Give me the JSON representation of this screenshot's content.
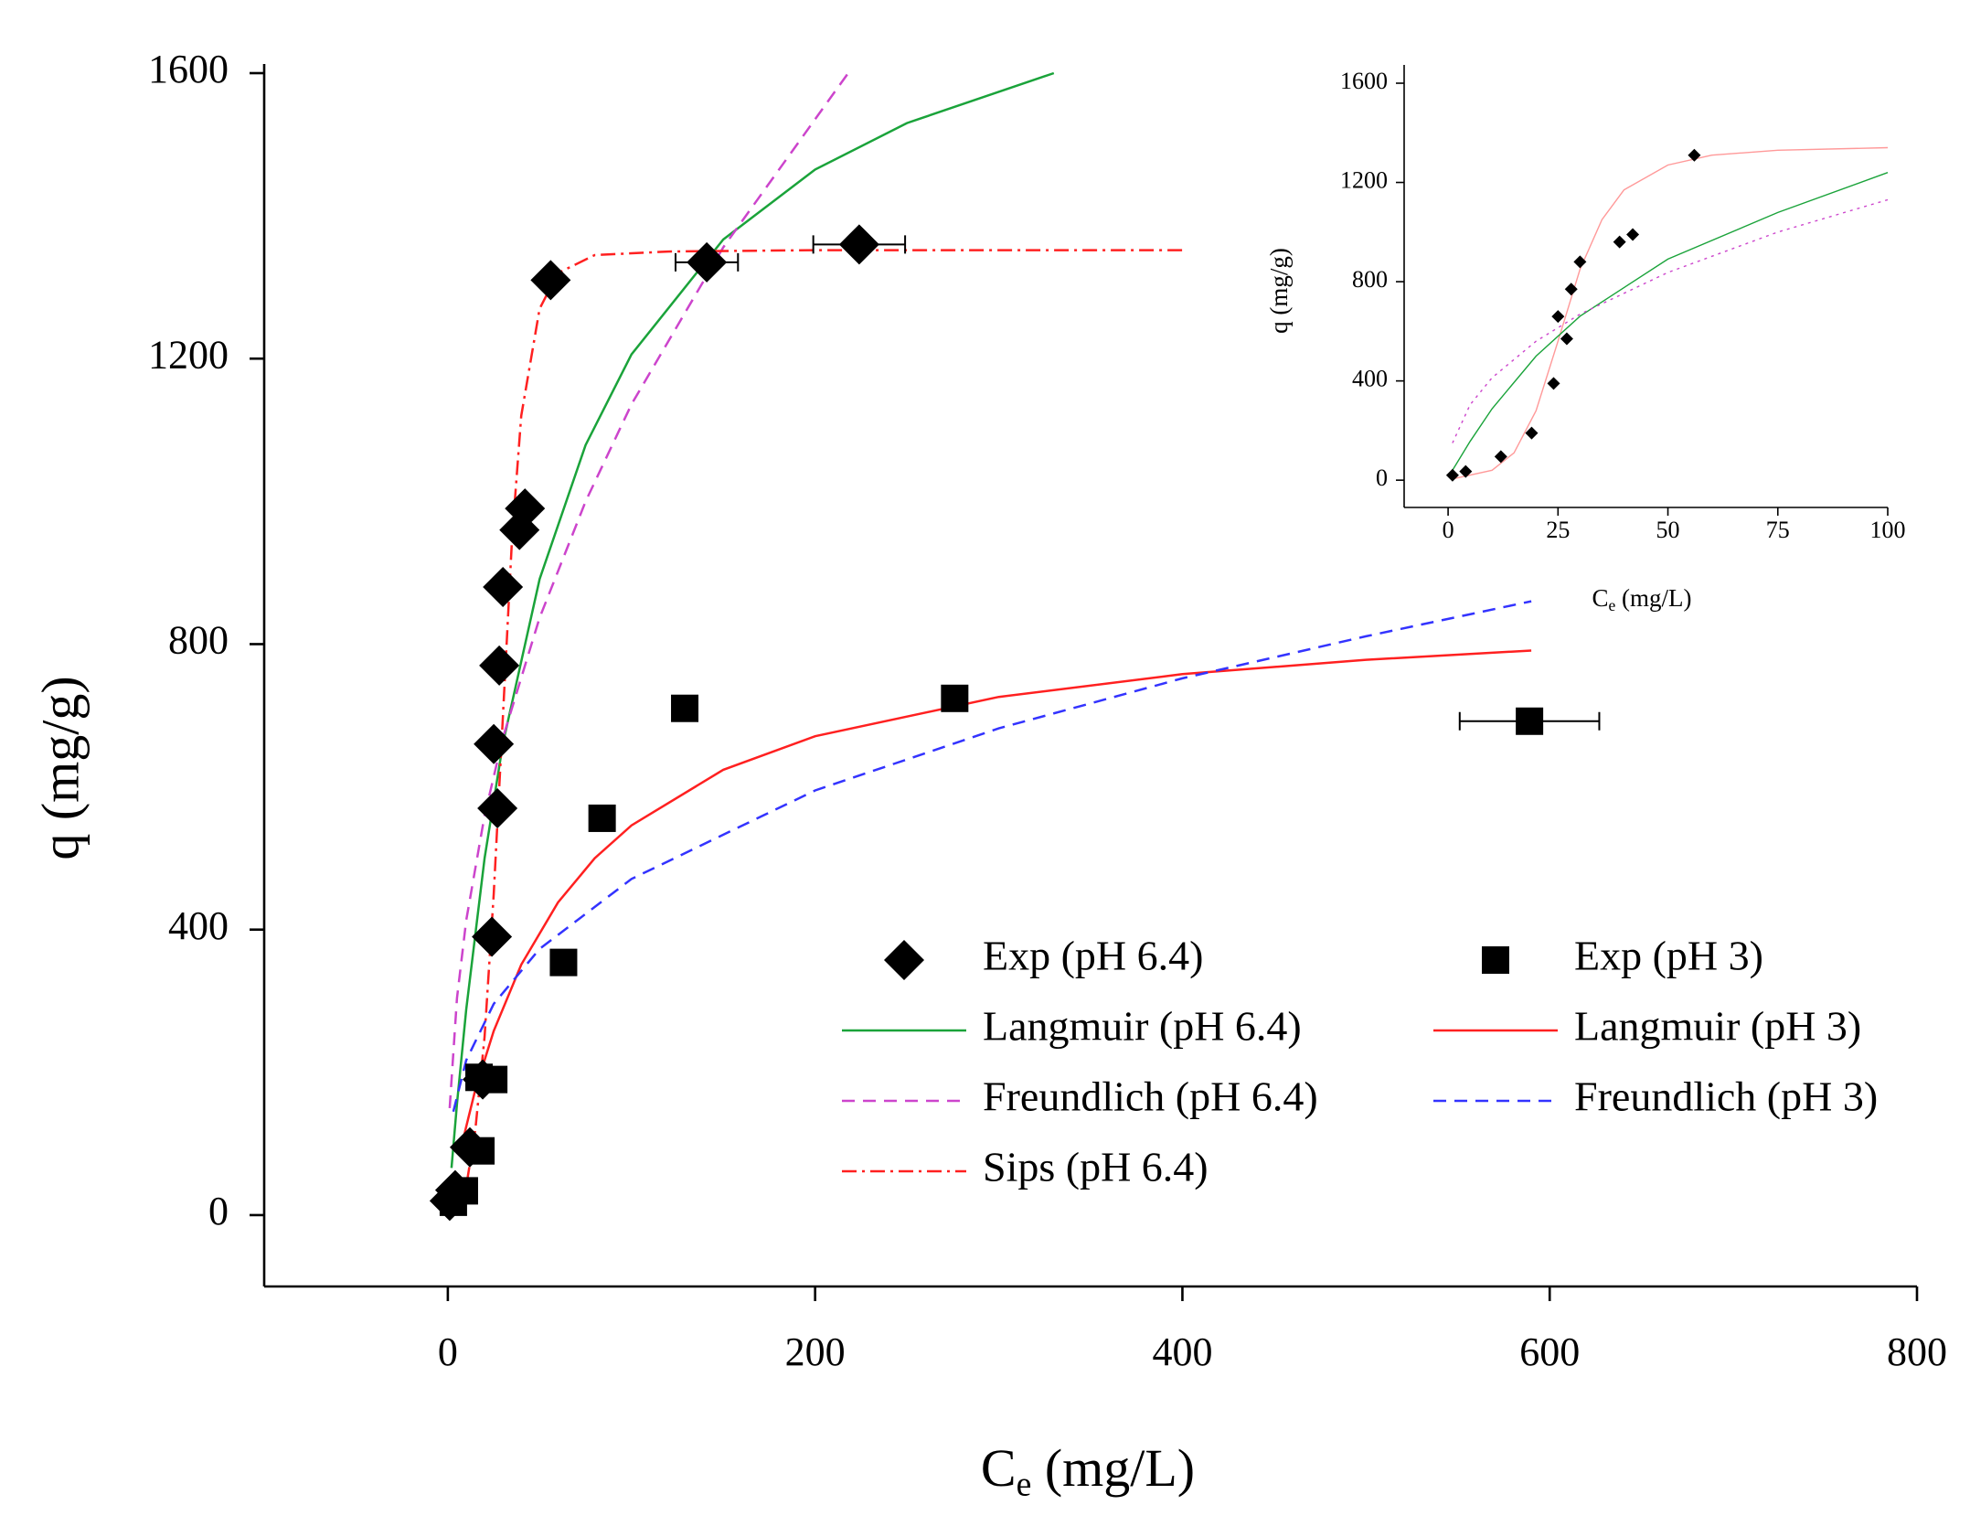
{
  "chart_data": [
    {
      "type": "scatter",
      "x_label": [
        "C",
        "e",
        " (mg/L)"
      ],
      "y_label": "q (mg/g)",
      "xlim": [
        -100,
        800
      ],
      "ylim": [
        -100,
        1600
      ],
      "xticks": [
        0,
        200,
        400,
        600,
        800
      ],
      "yticks": [
        0,
        400,
        800,
        1200,
        1600
      ],
      "legend": "lower right",
      "legend_columns": 2,
      "series": [
        {
          "name": "Exp (pH 6.4)",
          "color": "#000000",
          "mode": "markers",
          "marker": "diamond",
          "x": [
            1,
            4,
            12,
            19,
            24,
            25,
            27,
            28,
            30,
            39,
            42,
            56,
            141,
            224
          ],
          "values": [
            20,
            35,
            95,
            190,
            390,
            660,
            570,
            770,
            880,
            960,
            990,
            1310,
            1335,
            1360
          ],
          "xerr": [
            null,
            null,
            null,
            null,
            null,
            null,
            null,
            null,
            null,
            null,
            null,
            null,
            17,
            25
          ]
        },
        {
          "name": "Langmuir (pH 6.4)",
          "color": "#1aa33a",
          "mode": "line",
          "dash": "solid",
          "x": [
            2,
            5,
            10,
            20,
            30,
            50,
            75,
            100,
            150,
            200,
            250,
            330
          ],
          "values": [
            66,
            156,
            288,
            500,
            661,
            891,
            1079,
            1206,
            1367,
            1465,
            1530,
            1600
          ]
        },
        {
          "name": "Freundlich (pH 6.4)",
          "color": "#cc44cc",
          "mode": "line",
          "dash": "dashed",
          "x": [
            1,
            5,
            10,
            20,
            30,
            50,
            75,
            100,
            150,
            218
          ],
          "values": [
            150,
            304,
            413,
            560,
            669,
            837,
            1000,
            1136,
            1356,
            1600
          ]
        },
        {
          "name": "Sips (pH 6.4)",
          "color": "#ff2020",
          "mode": "line",
          "dash": "dashdot",
          "x": [
            5,
            10,
            15,
            20,
            25,
            30,
            35,
            40,
            50,
            60,
            80,
            120,
            200,
            400
          ],
          "values": [
            10,
            40,
            120,
            250,
            450,
            700,
            950,
            1120,
            1270,
            1320,
            1345,
            1350,
            1352,
            1352
          ]
        },
        {
          "name": "Exp (pH 3)",
          "color": "#000000",
          "mode": "markers",
          "marker": "square",
          "x": [
            3,
            9,
            18,
            17,
            25,
            63,
            84,
            129,
            276,
            589
          ],
          "values": [
            18,
            34,
            90,
            193,
            190,
            354,
            556,
            710,
            724,
            692
          ],
          "xerr": [
            null,
            null,
            null,
            null,
            null,
            null,
            null,
            null,
            null,
            38
          ]
        },
        {
          "name": "Langmuir (pH 3)",
          "color": "#ff2020",
          "mode": "line",
          "dash": "solid",
          "x": [
            8,
            15,
            25,
            40,
            60,
            80,
            100,
            150,
            200,
            300,
            400,
            500,
            590
          ],
          "values": [
            103,
            176,
            258,
            351,
            438,
            500,
            546,
            624,
            671,
            726,
            758,
            778,
            791
          ]
        },
        {
          "name": "Freundlich (pH 3)",
          "color": "#3333ff",
          "mode": "line",
          "dash": "dashed",
          "x": [
            3,
            10,
            25,
            50,
            100,
            200,
            300,
            400,
            500,
            590
          ],
          "values": [
            145,
            217,
            296,
            373,
            471,
            595,
            682,
            752,
            811,
            860
          ]
        }
      ]
    },
    {
      "type": "scatter",
      "x_label": [
        "C",
        "e",
        " (mg/L)"
      ],
      "y_label": "q (mg/g)",
      "xlim": [
        -10,
        100
      ],
      "ylim": [
        -110,
        1600
      ],
      "xticks": [
        0,
        25,
        50,
        75,
        100
      ],
      "yticks": [
        0,
        400,
        800,
        1200,
        1600
      ],
      "series": [
        {
          "color": "#000000",
          "mode": "markers",
          "marker": "diamond",
          "x": [
            1,
            4,
            12,
            19,
            24,
            25,
            27,
            28,
            30,
            39,
            42,
            56
          ],
          "values": [
            20,
            35,
            95,
            190,
            390,
            660,
            570,
            770,
            880,
            960,
            990,
            1310
          ]
        },
        {
          "color": "#ff9999",
          "mode": "line",
          "dash": "solid",
          "x": [
            1,
            10,
            15,
            20,
            25,
            30,
            35,
            40,
            50,
            60,
            75,
            100
          ],
          "values": [
            5,
            40,
            110,
            280,
            560,
            850,
            1050,
            1170,
            1270,
            1310,
            1330,
            1340
          ]
        },
        {
          "color": "#1aa33a",
          "mode": "line",
          "dash": "solid",
          "x": [
            1,
            5,
            10,
            20,
            30,
            50,
            75,
            100
          ],
          "values": [
            40,
            156,
            288,
            500,
            661,
            891,
            1079,
            1240
          ]
        },
        {
          "color": "#cc44cc",
          "mode": "line",
          "dash": "dotted",
          "x": [
            1,
            5,
            10,
            20,
            30,
            50,
            75,
            100
          ],
          "values": [
            150,
            304,
            413,
            560,
            669,
            837,
            1000,
            1130
          ]
        }
      ]
    }
  ]
}
